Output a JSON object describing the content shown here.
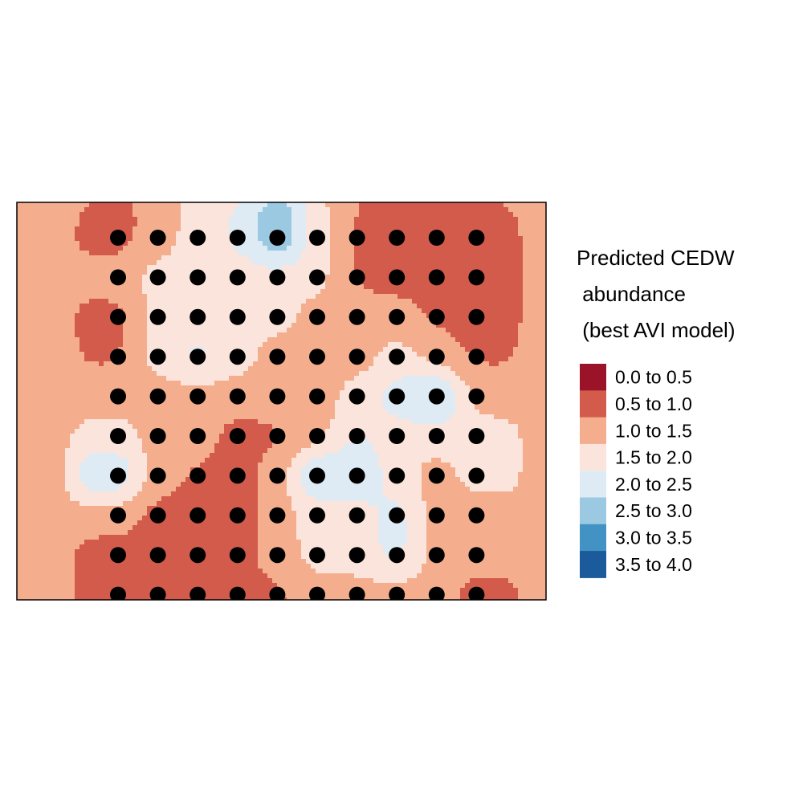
{
  "chart_data": {
    "type": "heatmap",
    "title": "",
    "xlabel": "",
    "ylabel": "",
    "legend": {
      "title_lines": [
        "Predicted CEDW",
        " abundance",
        " (best AVI model)"
      ],
      "placement": "right",
      "bins": [
        {
          "label": "0.0 to 0.5",
          "min": 0.0,
          "max": 0.5,
          "color": "#9b1328"
        },
        {
          "label": "0.5 to 1.0",
          "min": 0.5,
          "max": 1.0,
          "color": "#d35b4c"
        },
        {
          "label": "1.0 to 1.5",
          "min": 1.0,
          "max": 1.5,
          "color": "#f4ae8e"
        },
        {
          "label": "1.5 to 2.0",
          "min": 1.5,
          "max": 2.0,
          "color": "#fbe4db"
        },
        {
          "label": "2.0 to 2.5",
          "min": 2.0,
          "max": 2.5,
          "color": "#deebf4"
        },
        {
          "label": "2.5 to 3.0",
          "min": 2.5,
          "max": 3.0,
          "color": "#9ac9e1"
        },
        {
          "label": "3.0 to 3.5",
          "min": 3.0,
          "max": 3.5,
          "color": "#4392c4"
        },
        {
          "label": "3.5 to 4.0",
          "min": 3.5,
          "max": 4.0,
          "color": "#1b5b9b"
        }
      ]
    },
    "grid": false,
    "columns": 10,
    "rows": 10,
    "background_value": 1.25,
    "predicted_values_by_row": [
      [
        0.75,
        1.25,
        1.75,
        2.1,
        3.2,
        1.75,
        0.9,
        0.75,
        0.75,
        0.75
      ],
      [
        1.25,
        1.75,
        1.75,
        1.75,
        1.75,
        1.75,
        0.9,
        0.75,
        0.75,
        0.75
      ],
      [
        0.75,
        1.75,
        1.75,
        1.75,
        1.75,
        1.25,
        1.25,
        1.25,
        0.9,
        0.75
      ],
      [
        0.9,
        1.75,
        2.3,
        1.75,
        1.25,
        1.25,
        1.25,
        1.75,
        1.25,
        0.9
      ],
      [
        1.25,
        1.25,
        1.25,
        1.25,
        1.25,
        1.25,
        1.75,
        2.3,
        3.0,
        1.25
      ],
      [
        1.75,
        1.25,
        1.25,
        0.75,
        0.9,
        1.25,
        2.1,
        1.75,
        1.75,
        1.75
      ],
      [
        2.6,
        1.25,
        0.9,
        0.75,
        1.25,
        2.8,
        2.6,
        1.75,
        1.25,
        1.75
      ],
      [
        1.25,
        0.75,
        0.75,
        0.75,
        1.25,
        1.75,
        1.75,
        2.3,
        1.25,
        1.25
      ],
      [
        0.75,
        0.75,
        0.75,
        0.75,
        1.25,
        1.75,
        1.75,
        2.3,
        1.25,
        1.25
      ],
      [
        0.75,
        0.75,
        0.75,
        0.75,
        0.9,
        1.25,
        1.25,
        1.25,
        1.25,
        0.75
      ]
    ]
  }
}
